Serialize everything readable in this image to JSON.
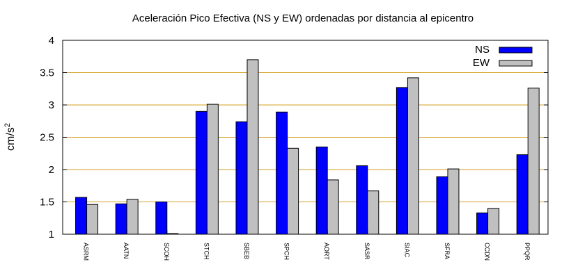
{
  "chart_data": {
    "type": "bar",
    "title": "Aceleración Pico Efectiva (NS y EW) ordenadas por distancia al epicentro",
    "xlabel": "",
    "ylabel": "cm/s",
    "ylabel_superscript": "2",
    "ylim": [
      1,
      4
    ],
    "yticks": [
      "1",
      "1.5",
      "2",
      "2.5",
      "3",
      "3.5",
      "4"
    ],
    "grid": "horizontal",
    "legend_position": "top-right",
    "categories": [
      "ASRM",
      "AATN",
      "SCOH",
      "STCH",
      "SBEB",
      "SPCH",
      "AORT",
      "SASR",
      "SIAC",
      "SFRA",
      "CCDN",
      "PPQR"
    ],
    "series": [
      {
        "name": "NS",
        "color": "#0000ff",
        "values": [
          1.57,
          1.47,
          1.5,
          2.9,
          2.74,
          2.89,
          2.35,
          2.06,
          3.27,
          1.89,
          1.33,
          2.23
        ]
      },
      {
        "name": "EW",
        "color": "#c0c0c0",
        "values": [
          1.46,
          1.54,
          1.01,
          3.01,
          3.7,
          2.33,
          1.84,
          1.67,
          3.42,
          2.01,
          1.4,
          3.26
        ]
      }
    ],
    "grid_color": "#d4a020"
  }
}
